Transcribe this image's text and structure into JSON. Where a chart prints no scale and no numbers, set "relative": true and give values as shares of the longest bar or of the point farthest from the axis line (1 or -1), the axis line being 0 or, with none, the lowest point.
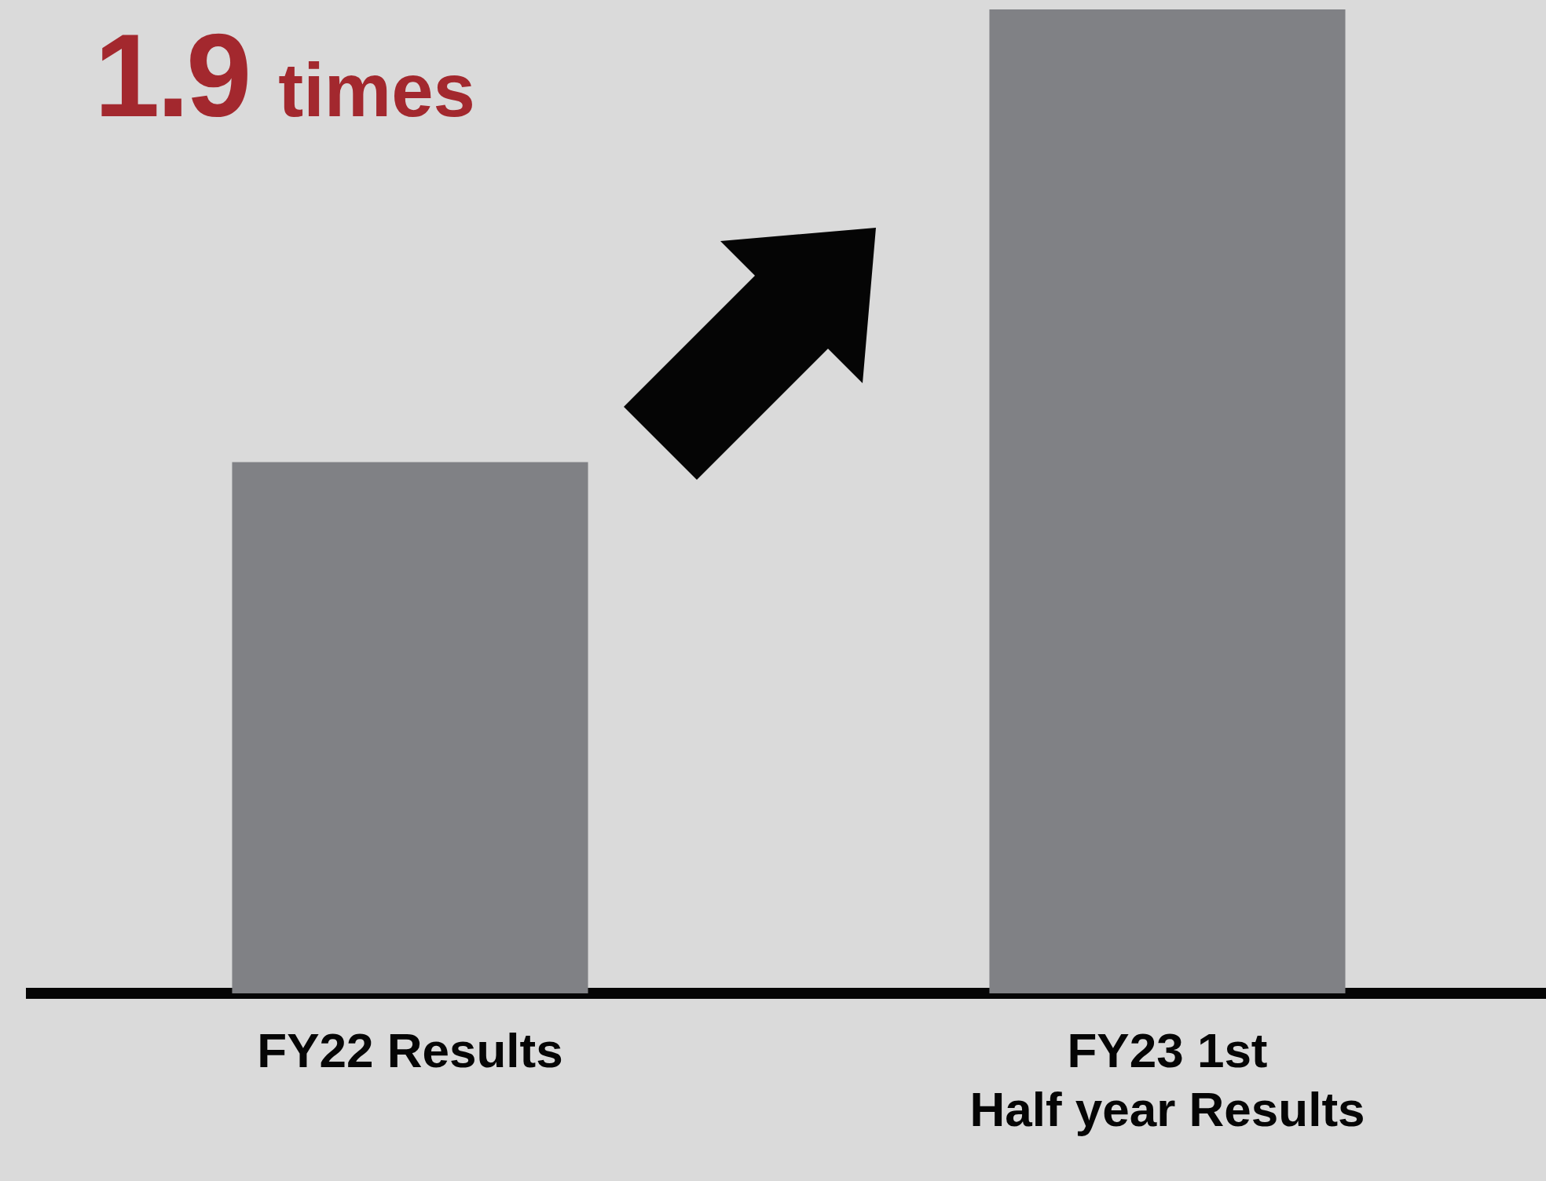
{
  "chart_data": {
    "type": "bar",
    "title": "1.9 times",
    "categories": [
      "FY22 Results",
      "FY23 1st Half year Results"
    ],
    "values": [
      0.54,
      1
    ],
    "color": "#808185",
    "relative": true
  }
}
